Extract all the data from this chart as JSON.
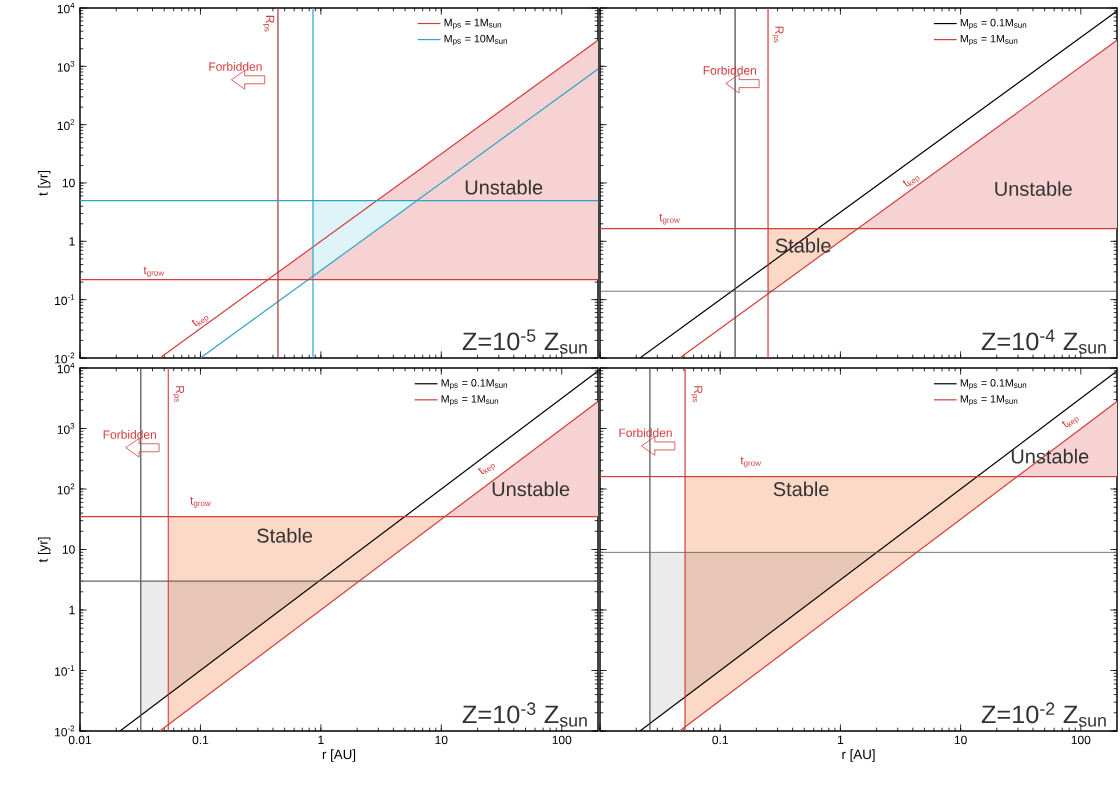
{
  "chart_data": [
    {
      "type": "line",
      "log": "xy",
      "xlim": [
        0.01,
        200
      ],
      "ylim": [
        0.01,
        10000
      ],
      "xticks": [
        {
          "value": 0.01,
          "label": null
        },
        {
          "value": 0.1,
          "label": null
        },
        {
          "value": 1,
          "label": null
        },
        {
          "value": 10,
          "label": null
        },
        {
          "value": 100,
          "label": null
        }
      ],
      "yticks": [
        {
          "value": 0.01,
          "label": "10$^{-2}$"
        },
        {
          "value": 0.1,
          "label": "10$^{-1}$"
        },
        1,
        10,
        {
          "value": 100,
          "label": "10$^{2}$"
        },
        {
          "value": 1000,
          "label": "10$^{3}$"
        },
        {
          "value": 10000,
          "label": "10$^{4}$"
        }
      ],
      "tick_labels": "y",
      "ylabel": "t [yr]",
      "legend": "top right",
      "series": [
        {
          "x": [
            0.44,
            200
          ],
          "values": [
            null,
            null
          ],
          "lower": [
            0.22,
            0.22
          ],
          "upper": [
            0.29,
            2800
          ],
          "color": "#f6d2d2"
        },
        {
          "x": [
            0.86,
            6.3
          ],
          "values": [
            null,
            null
          ],
          "lower": [
            0.25,
            5
          ],
          "upper": [
            5,
            5
          ],
          "color": "#dff4f9"
        },
        {
          "name": "M$_{ps}$ = 1M$_{sun}$",
          "x": [
            0.046,
            200
          ],
          "values": [
            0.01,
            2800
          ],
          "color": "#d23c3c"
        },
        {
          "name": "M$_{ps}$ = 10M$_{sun}$",
          "x": [
            0.1,
            200
          ],
          "values": [
            0.01,
            900
          ],
          "color": "#2ea3c9"
        }
      ],
      "ref_lines": [
        {
          "axis": "x",
          "value": 0.44,
          "color": "#a03030"
        },
        {
          "axis": "x",
          "value": 0.86,
          "color": "#2ea3c9"
        },
        {
          "axis": "y",
          "value": 0.22,
          "color": "#d23c3c"
        },
        {
          "axis": "y",
          "value": 5,
          "color": "#2ea3c9"
        }
      ],
      "annotations": [
        "Forbidden",
        "R$_{ps}$",
        "t$_{kep}$",
        "t$_{grow}$",
        "Unstable",
        "Z=10$^{-5}$ Z$_{sun}$"
      ]
    },
    {
      "type": "line",
      "log": "xy",
      "xlim": [
        0.01,
        200
      ],
      "ylim": [
        0.01,
        10000
      ],
      "xticks": [
        {
          "value": 0.01,
          "label": null
        },
        {
          "value": 0.1,
          "label": null
        },
        {
          "value": 1,
          "label": null
        },
        {
          "value": 10,
          "label": null
        },
        {
          "value": 100,
          "label": null
        }
      ],
      "yticks": [
        {
          "value": 0.01,
          "label": null
        },
        {
          "value": 0.1,
          "label": null
        },
        {
          "value": 1,
          "label": null
        },
        {
          "value": 10,
          "label": null
        },
        {
          "value": 100,
          "label": null
        },
        {
          "value": 1000,
          "label": null
        },
        {
          "value": 10000,
          "label": null
        }
      ],
      "tick_labels": false,
      "legend": "top right",
      "series": [
        {
          "x": [
            0.25,
            1.4
          ],
          "values": [
            null,
            null
          ],
          "lower": [
            0.125,
            1.65
          ],
          "upper": [
            1.65,
            1.65
          ],
          "color": "#fcd9c6"
        },
        {
          "x": [
            1.4,
            200
          ],
          "values": [
            null,
            null
          ],
          "lower": [
            1.65,
            1.65
          ],
          "upper": [
            1.65,
            2800
          ],
          "color": "#f6d2d2"
        },
        {
          "name": "M$_{ps}$ = 0.1M$_{sun}$",
          "x": [
            0.0215,
            200
          ],
          "values": [
            0.01,
            8900
          ],
          "color": "#000000"
        },
        {
          "name": "M$_{ps}$ = 1M$_{sun}$",
          "x": [
            0.046,
            200
          ],
          "values": [
            0.01,
            2800
          ],
          "color": "#d23c3c"
        }
      ],
      "ref_lines": [
        {
          "axis": "x",
          "value": 0.133,
          "color": "#444444"
        },
        {
          "axis": "x",
          "value": 0.25,
          "color": "#d23c3c"
        },
        {
          "axis": "y",
          "value": 1.65,
          "color": "#d23c3c"
        },
        {
          "axis": "y",
          "value": 0.14,
          "color": "#555555"
        }
      ],
      "annotations": [
        "Forbidden",
        "R$_{ps}$",
        "t$_{kep}$",
        "t$_{grow}$",
        "Unstable",
        "Stable",
        "Z=10$^{-4}$ Z$_{sun}$"
      ]
    },
    {
      "type": "line",
      "log": "xy",
      "xlim": [
        0.01,
        200
      ],
      "ylim": [
        0.01,
        10000
      ],
      "xticks": [
        0.01,
        0.1,
        1,
        10,
        100
      ],
      "yticks": [
        {
          "value": 0.01,
          "label": "10$^{-2}$"
        },
        {
          "value": 0.1,
          "label": "10$^{-1}$"
        },
        1,
        10,
        {
          "value": 100,
          "label": "10$^{2}$"
        },
        {
          "value": 1000,
          "label": "10$^{3}$"
        },
        {
          "value": 10000,
          "label": "10$^{4}$"
        }
      ],
      "xlabel": "r [AU]",
      "ylabel": "t [yr]",
      "legend": "top right",
      "series": [
        {
          "x": [
            0.032,
            0.054
          ],
          "values": [
            null,
            null
          ],
          "lower": [
            0.018,
            0.04
          ],
          "upper": [
            3,
            3
          ],
          "color": "#ebebeb"
        },
        {
          "x": [
            0.054,
            10.7
          ],
          "values": [
            null,
            null
          ],
          "lower": [
            0.0125,
            35
          ],
          "upper": [
            35,
            35
          ],
          "color": "#fcd9c6"
        },
        {
          "x": [
            0.054,
            0.96
          ],
          "values": [
            null,
            null
          ],
          "lower": [
            0.04,
            3
          ],
          "upper": [
            3,
            3
          ],
          "color": "#e8c6b6"
        },
        {
          "x": [
            10.7,
            200
          ],
          "values": [
            null,
            null
          ],
          "lower": [
            35,
            35
          ],
          "upper": [
            35,
            2800
          ],
          "color": "#f6d2d2"
        },
        {
          "name": "M$_{ps}$ = 0.1M$_{sun}$",
          "x": [
            0.0215,
            200
          ],
          "values": [
            0.01,
            8900
          ],
          "color": "#000000"
        },
        {
          "name": "M$_{ps}$ = 1M$_{sun}$",
          "x": [
            0.046,
            200
          ],
          "values": [
            0.01,
            2800
          ],
          "color": "#d23c3c"
        }
      ],
      "ref_lines": [
        {
          "axis": "x",
          "value": 0.032,
          "color": "#444444"
        },
        {
          "axis": "x",
          "value": 0.054,
          "color": "#d23c3c"
        },
        {
          "axis": "y",
          "value": 35,
          "color": "#d23c3c"
        },
        {
          "axis": "y",
          "value": 3,
          "color": "#666666"
        }
      ],
      "annotations": [
        "Forbidden",
        "R$_{ps}$",
        "t$_{kep}$",
        "t$_{grow}$",
        "Unstable",
        "Stable",
        "Z=10$^{-3}$ Z$_{sun}$"
      ]
    },
    {
      "type": "line",
      "log": "xy",
      "xlim": [
        0.01,
        200
      ],
      "ylim": [
        0.01,
        10000
      ],
      "xticks": [
        {
          "value": 0.01,
          "label": null
        },
        0.1,
        1,
        10,
        100
      ],
      "yticks": [
        {
          "value": 0.01,
          "label": null
        },
        {
          "value": 0.1,
          "label": null
        },
        {
          "value": 1,
          "label": null
        },
        {
          "value": 10,
          "label": null
        },
        {
          "value": 100,
          "label": null
        },
        {
          "value": 1000,
          "label": null
        },
        {
          "value": 10000,
          "label": null
        }
      ],
      "tick_labels": "x",
      "xlabel": "r [AU]",
      "legend": "top right",
      "series": [
        {
          "x": [
            0.026,
            0.051
          ],
          "values": [
            null,
            null
          ],
          "lower": [
            0.0133,
            0.036
          ],
          "upper": [
            9,
            9
          ],
          "color": "#ebebeb"
        },
        {
          "x": [
            0.051,
            29.5
          ],
          "values": [
            null,
            null
          ],
          "lower": [
            0.0115,
            160
          ],
          "upper": [
            160,
            160
          ],
          "color": "#fcd9c6"
        },
        {
          "x": [
            0.051,
            2.0
          ],
          "values": [
            null,
            null
          ],
          "lower": [
            0.036,
            9
          ],
          "upper": [
            9,
            9
          ],
          "color": "#e8c6b6"
        },
        {
          "x": [
            29.5,
            200
          ],
          "values": [
            null,
            null
          ],
          "lower": [
            160,
            160
          ],
          "upper": [
            160,
            2800
          ],
          "color": "#f6d2d2"
        },
        {
          "name": "M$_{ps}$ = 0.1M$_{sun}$",
          "x": [
            0.0215,
            200
          ],
          "values": [
            0.01,
            8900
          ],
          "color": "#000000"
        },
        {
          "name": "M$_{ps}$ = 1M$_{sun}$",
          "x": [
            0.046,
            200
          ],
          "values": [
            0.01,
            2800
          ],
          "color": "#d23c3c"
        }
      ],
      "ref_lines": [
        {
          "axis": "x",
          "value": 0.026,
          "color": "#444444"
        },
        {
          "axis": "x",
          "value": 0.051,
          "color": "#d23c3c"
        },
        {
          "axis": "y",
          "value": 160,
          "color": "#d23c3c"
        },
        {
          "axis": "y",
          "value": 9,
          "color": "#666666"
        }
      ],
      "annotations": [
        "Forbidden",
        "R$_{ps}$",
        "t$_{kep}$",
        "t$_{grow}$",
        "Unstable",
        "Stable",
        "Z=10$^{-2}$ Z$_{sun}$"
      ]
    }
  ]
}
